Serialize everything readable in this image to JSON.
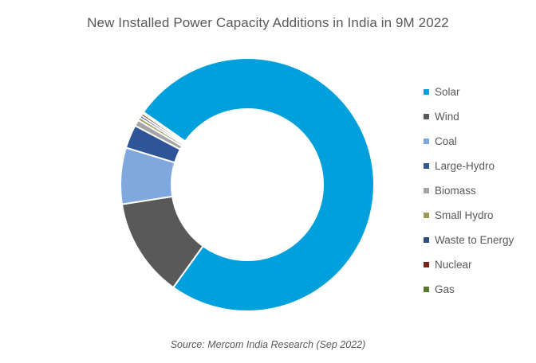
{
  "chart_data": {
    "type": "pie",
    "title": "New Installed Power Capacity Additions in India in 9M 2022",
    "donut": true,
    "legend_position": "right",
    "source": "Source: Mercom India Research (Sep 2022)",
    "slices": [
      {
        "label": "Solar",
        "value": 75.2,
        "color": "#00A0DC"
      },
      {
        "label": "Wind",
        "value": 12.6,
        "color": "#595959"
      },
      {
        "label": "Coal",
        "value": 7.2,
        "color": "#7FA9DE"
      },
      {
        "label": "Large-Hydro",
        "value": 3.0,
        "color": "#2E5597"
      },
      {
        "label": "Biomass",
        "value": 0.8,
        "color": "#A5A5A5"
      },
      {
        "label": "Small Hydro",
        "value": 0.4,
        "color": "#9E9A5A"
      },
      {
        "label": "Waste to Energy",
        "value": 0.3,
        "color": "#2E4E7B"
      },
      {
        "label": "Nuclear",
        "value": 0.3,
        "color": "#7B2318"
      },
      {
        "label": "Gas",
        "value": 0.2,
        "color": "#567A2B"
      }
    ]
  }
}
